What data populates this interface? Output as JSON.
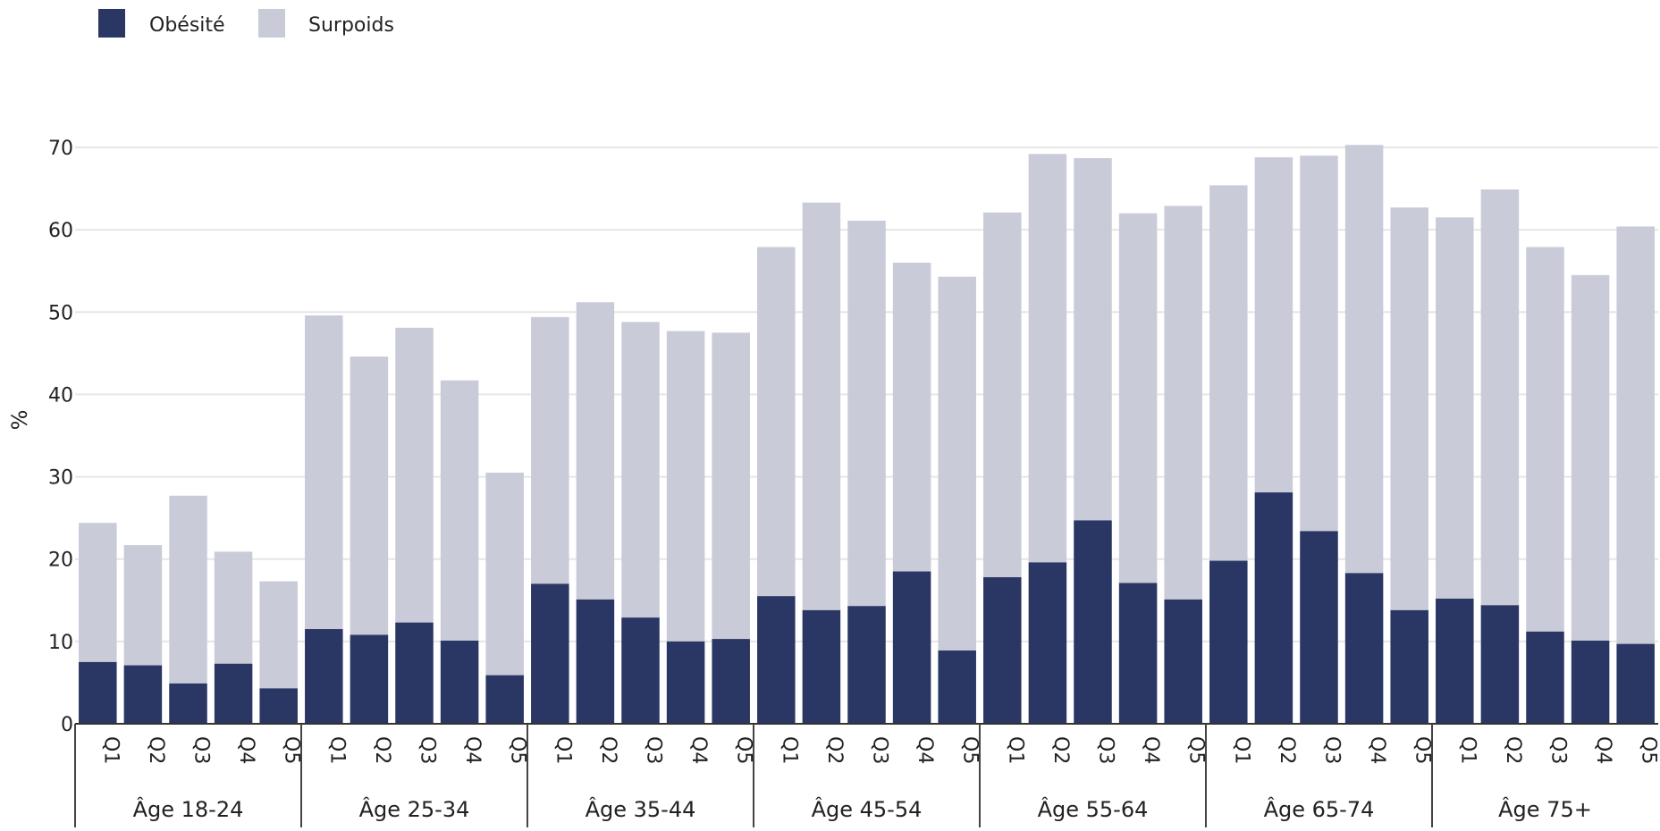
{
  "chart_data": {
    "type": "bar",
    "stacked": true,
    "ylabel": "%",
    "ylim": [
      0,
      70
    ],
    "yticks": [
      0,
      10,
      20,
      30,
      40,
      50,
      60,
      70
    ],
    "grid": true,
    "legend_position": "top-left",
    "groups": [
      "Âge 18-24",
      "Âge 25-34",
      "Âge 35-44",
      "Âge 45-54",
      "Âge 55-64",
      "Âge 65-74",
      "Âge 75+"
    ],
    "subcategories": [
      "Q1",
      "Q2",
      "Q3",
      "Q4",
      "Q5"
    ],
    "series": [
      {
        "name": "Obésité",
        "color": "#2a3663",
        "values": [
          [
            7.5,
            7.1,
            4.9,
            7.3,
            4.3
          ],
          [
            11.5,
            10.8,
            12.3,
            10.1,
            5.9
          ],
          [
            17.0,
            15.1,
            12.9,
            10.0,
            10.3
          ],
          [
            15.5,
            13.8,
            14.3,
            18.5,
            8.9
          ],
          [
            17.8,
            19.6,
            24.7,
            17.1,
            15.1
          ],
          [
            19.8,
            28.1,
            23.4,
            18.3,
            13.8
          ],
          [
            15.2,
            14.4,
            11.2,
            10.1,
            9.7
          ]
        ]
      },
      {
        "name": "Surpoids",
        "color": "#c9cbd8",
        "values": [
          [
            16.9,
            14.6,
            22.8,
            13.6,
            13.0
          ],
          [
            38.1,
            33.8,
            35.8,
            31.6,
            24.6
          ],
          [
            32.4,
            36.1,
            35.9,
            37.7,
            37.2
          ],
          [
            42.4,
            49.5,
            46.8,
            37.5,
            45.4
          ],
          [
            44.3,
            49.6,
            44.0,
            44.9,
            47.8
          ],
          [
            45.6,
            40.7,
            45.6,
            52.0,
            48.9
          ],
          [
            46.3,
            50.5,
            46.7,
            44.4,
            50.7
          ]
        ]
      }
    ]
  }
}
